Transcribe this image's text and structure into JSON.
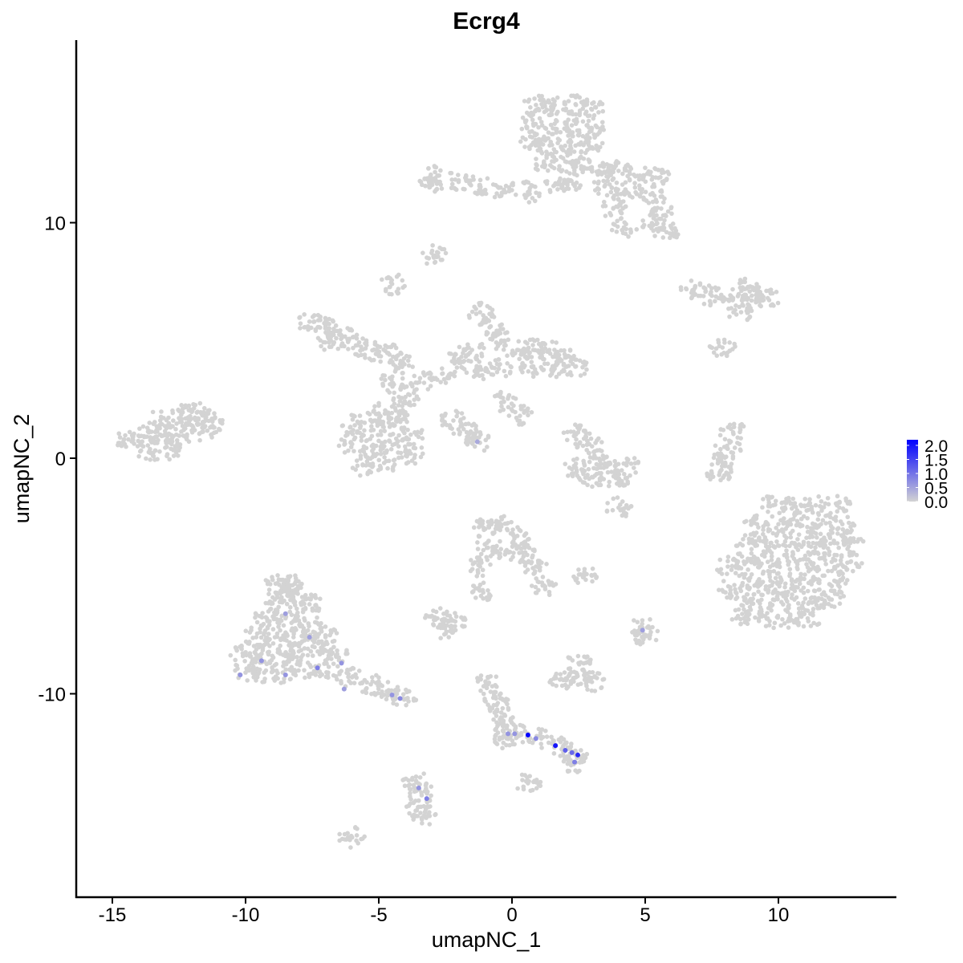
{
  "chart_data": {
    "type": "scatter",
    "title": "Ecrg4",
    "xlabel": "umapNC_1",
    "ylabel": "umapNC_2",
    "xlim": [
      -16.4,
      14.4
    ],
    "ylim": [
      -18.6,
      17.7
    ],
    "x_ticks": [
      "-15",
      "-10",
      "-5",
      "0",
      "5",
      "10"
    ],
    "y_ticks": [
      "-10",
      "0",
      "10"
    ],
    "grid": false,
    "color_scale": {
      "low": "#D3D3D3",
      "high": "#0000FF",
      "min": 0,
      "max": 2.0,
      "labels": [
        "2.0",
        "1.5",
        "1.0",
        "0.5",
        "0.0"
      ],
      "placement": "right"
    },
    "background_cells": [
      [
        0.9,
        15.0
      ],
      [
        1.6,
        15.0
      ],
      [
        2.4,
        15.0
      ],
      [
        3.0,
        14.8
      ],
      [
        0.8,
        14.2
      ],
      [
        1.6,
        14.2
      ],
      [
        2.4,
        14.2
      ],
      [
        3.0,
        14.0
      ],
      [
        0.8,
        13.4
      ],
      [
        1.5,
        13.3
      ],
      [
        2.2,
        13.4
      ],
      [
        3.0,
        13.2
      ],
      [
        1.2,
        12.6
      ],
      [
        2.0,
        12.6
      ],
      [
        2.6,
        12.4
      ],
      [
        3.4,
        12.4
      ],
      [
        4.0,
        12.2
      ],
      [
        4.8,
        12.0
      ],
      [
        5.5,
        11.9
      ],
      [
        3.5,
        11.6
      ],
      [
        4.2,
        11.3
      ],
      [
        5.2,
        11.2
      ],
      [
        5.6,
        10.6
      ],
      [
        3.8,
        10.6
      ],
      [
        4.2,
        9.8
      ],
      [
        5.8,
        9.6
      ],
      [
        5.3,
        9.9
      ],
      [
        2.2,
        11.8
      ],
      [
        1.6,
        11.6
      ],
      [
        0.6,
        11.3
      ],
      [
        -0.3,
        11.4
      ],
      [
        -1.2,
        11.6
      ],
      [
        -2.0,
        11.8
      ],
      [
        -2.8,
        12.0
      ],
      [
        -3.1,
        11.5
      ],
      [
        -2.9,
        8.6
      ],
      [
        -4.5,
        7.4
      ],
      [
        6.8,
        7.1
      ],
      [
        7.5,
        6.9
      ],
      [
        8.3,
        6.8
      ],
      [
        9.0,
        6.9
      ],
      [
        9.6,
        6.8
      ],
      [
        8.8,
        7.2
      ],
      [
        8.6,
        6.2
      ],
      [
        -7.6,
        5.8
      ],
      [
        -7.0,
        5.6
      ],
      [
        -6.4,
        5.2
      ],
      [
        -5.8,
        4.8
      ],
      [
        -5.2,
        4.6
      ],
      [
        -6.8,
        5.0
      ],
      [
        -4.6,
        4.4
      ],
      [
        -4.2,
        4.0
      ],
      [
        -4.5,
        3.2
      ],
      [
        -4.0,
        2.6
      ],
      [
        -3.3,
        3.2
      ],
      [
        -2.6,
        3.6
      ],
      [
        -2.0,
        4.2
      ],
      [
        -1.5,
        4.6
      ],
      [
        -1.2,
        6.2
      ],
      [
        -0.8,
        5.6
      ],
      [
        -0.4,
        5.0
      ],
      [
        0.2,
        4.6
      ],
      [
        0.8,
        4.6
      ],
      [
        1.4,
        4.6
      ],
      [
        2.0,
        4.3
      ],
      [
        2.4,
        3.9
      ],
      [
        1.6,
        3.8
      ],
      [
        0.8,
        3.9
      ],
      [
        -0.5,
        3.8
      ],
      [
        -1.4,
        3.7
      ],
      [
        -5.9,
        1.4
      ],
      [
        -5.2,
        1.2
      ],
      [
        -4.4,
        1.4
      ],
      [
        -3.8,
        1.0
      ],
      [
        -6.0,
        0.6
      ],
      [
        -5.2,
        0.4
      ],
      [
        -4.4,
        0.6
      ],
      [
        -3.8,
        0.2
      ],
      [
        -5.6,
        -0.3
      ],
      [
        -4.8,
        -0.2
      ],
      [
        -4.2,
        2.0
      ],
      [
        -5.0,
        1.9
      ],
      [
        -2.2,
        1.6
      ],
      [
        -1.7,
        1.1
      ],
      [
        -1.3,
        0.7
      ],
      [
        -0.3,
        2.4
      ],
      [
        0.3,
        1.8
      ],
      [
        -14.4,
        0.8
      ],
      [
        -13.8,
        0.9
      ],
      [
        -13.2,
        1.0
      ],
      [
        -12.6,
        1.0
      ],
      [
        -12.0,
        1.1
      ],
      [
        -13.6,
        0.3
      ],
      [
        -12.8,
        0.4
      ],
      [
        -13.2,
        1.6
      ],
      [
        -12.5,
        1.7
      ],
      [
        -12.0,
        2.0
      ],
      [
        -11.5,
        1.7
      ],
      [
        -11.2,
        1.3
      ],
      [
        2.4,
        1.0
      ],
      [
        2.9,
        0.6
      ],
      [
        3.3,
        -0.1
      ],
      [
        3.6,
        -0.6
      ],
      [
        3.0,
        -0.8
      ],
      [
        2.4,
        -0.4
      ],
      [
        4.0,
        -0.9
      ],
      [
        4.3,
        -0.3
      ],
      [
        8.3,
        1.1
      ],
      [
        8.1,
        0.4
      ],
      [
        7.9,
        -0.2
      ],
      [
        7.8,
        -0.6
      ],
      [
        9.8,
        -2.0
      ],
      [
        10.6,
        -2.0
      ],
      [
        11.4,
        -2.0
      ],
      [
        12.2,
        -2.0
      ],
      [
        9.2,
        -2.8
      ],
      [
        10.0,
        -2.8
      ],
      [
        10.8,
        -2.8
      ],
      [
        11.6,
        -2.8
      ],
      [
        12.4,
        -2.8
      ],
      [
        8.9,
        -3.6
      ],
      [
        9.7,
        -3.6
      ],
      [
        10.5,
        -3.6
      ],
      [
        11.3,
        -3.6
      ],
      [
        12.1,
        -3.6
      ],
      [
        12.7,
        -3.6
      ],
      [
        8.8,
        -4.4
      ],
      [
        9.6,
        -4.4
      ],
      [
        10.4,
        -4.4
      ],
      [
        11.2,
        -4.4
      ],
      [
        12.0,
        -4.4
      ],
      [
        12.7,
        -4.4
      ],
      [
        8.9,
        -5.2
      ],
      [
        9.7,
        -5.2
      ],
      [
        10.5,
        -5.2
      ],
      [
        11.3,
        -5.2
      ],
      [
        12.1,
        -5.2
      ],
      [
        9.0,
        -6.0
      ],
      [
        9.8,
        -6.0
      ],
      [
        10.6,
        -6.0
      ],
      [
        11.4,
        -6.0
      ],
      [
        12.0,
        -6.0
      ],
      [
        8.7,
        -6.8
      ],
      [
        9.6,
        -6.8
      ],
      [
        10.4,
        -6.8
      ],
      [
        11.1,
        -6.8
      ],
      [
        8.1,
        -4.6
      ],
      [
        8.2,
        -5.6
      ],
      [
        -1.0,
        -3.0
      ],
      [
        -0.4,
        -2.9
      ],
      [
        0.2,
        -3.3
      ],
      [
        -0.9,
        -3.8
      ],
      [
        -0.2,
        -3.9
      ],
      [
        0.5,
        -4.0
      ],
      [
        0.9,
        -4.6
      ],
      [
        1.2,
        -5.4
      ],
      [
        -1.2,
        -4.6
      ],
      [
        -1.1,
        -5.6
      ],
      [
        -2.8,
        -6.8
      ],
      [
        -2.2,
        -6.9
      ],
      [
        -2.6,
        -7.2
      ],
      [
        -8.8,
        -5.3
      ],
      [
        -8.3,
        -5.4
      ],
      [
        -8.9,
        -6.0
      ],
      [
        -8.2,
        -6.0
      ],
      [
        -7.6,
        -6.2
      ],
      [
        -9.2,
        -6.8
      ],
      [
        -8.5,
        -6.8
      ],
      [
        -7.8,
        -6.8
      ],
      [
        -9.6,
        -7.6
      ],
      [
        -8.9,
        -7.6
      ],
      [
        -8.2,
        -7.6
      ],
      [
        -7.4,
        -7.4
      ],
      [
        -10.1,
        -8.4
      ],
      [
        -9.4,
        -8.3
      ],
      [
        -8.7,
        -8.3
      ],
      [
        -8.0,
        -8.2
      ],
      [
        -7.2,
        -8.2
      ],
      [
        -6.6,
        -8.4
      ],
      [
        -10.0,
        -9.1
      ],
      [
        -9.3,
        -9.1
      ],
      [
        -8.6,
        -9.1
      ],
      [
        -7.8,
        -9.0
      ],
      [
        -6.9,
        -9.1
      ],
      [
        -6.0,
        -9.3
      ],
      [
        -5.3,
        -9.6
      ],
      [
        -4.7,
        -9.9
      ],
      [
        -4.1,
        -10.2
      ],
      [
        -8.4,
        -5.6
      ],
      [
        -7.0,
        -7.6
      ],
      [
        1.8,
        -9.4
      ],
      [
        2.4,
        -9.3
      ],
      [
        3.0,
        -9.5
      ],
      [
        2.5,
        -8.7
      ],
      [
        -0.9,
        -9.6
      ],
      [
        -0.6,
        -10.2
      ],
      [
        -0.4,
        -10.8
      ],
      [
        -0.2,
        -11.4
      ],
      [
        -0.2,
        -11.9
      ],
      [
        0.1,
        -11.7
      ],
      [
        1.1,
        -11.9
      ],
      [
        1.9,
        -12.3
      ],
      [
        2.4,
        -12.6
      ],
      [
        2.3,
        -12.9
      ],
      [
        0.6,
        -13.8
      ],
      [
        -3.6,
        -13.7
      ],
      [
        -3.4,
        -14.2
      ],
      [
        -3.5,
        -14.8
      ],
      [
        -3.3,
        -15.2
      ],
      [
        -6.0,
        -16.1
      ],
      [
        4.9,
        -7.2
      ],
      [
        5.0,
        -7.5
      ],
      [
        7.9,
        4.7
      ],
      [
        4.0,
        -2.1
      ],
      [
        2.7,
        -5.0
      ]
    ],
    "expressing_cells": [
      {
        "x": 0.6,
        "y": -11.75,
        "value": 2.0
      },
      {
        "x": 1.63,
        "y": -12.2,
        "value": 1.8
      },
      {
        "x": 2.47,
        "y": -12.6,
        "value": 1.6
      },
      {
        "x": 2.0,
        "y": -12.4,
        "value": 1.1
      },
      {
        "x": 2.25,
        "y": -12.5,
        "value": 1.0
      },
      {
        "x": -0.15,
        "y": -11.7,
        "value": 0.6
      },
      {
        "x": 0.1,
        "y": -11.7,
        "value": 0.6
      },
      {
        "x": 0.9,
        "y": -11.9,
        "value": 0.7
      },
      {
        "x": 2.35,
        "y": -12.9,
        "value": 0.8
      },
      {
        "x": -8.5,
        "y": -6.6,
        "value": 0.5
      },
      {
        "x": -7.6,
        "y": -7.6,
        "value": 0.5
      },
      {
        "x": -7.3,
        "y": -8.9,
        "value": 0.8
      },
      {
        "x": -6.4,
        "y": -8.7,
        "value": 0.6
      },
      {
        "x": -10.2,
        "y": -9.2,
        "value": 0.6
      },
      {
        "x": -9.4,
        "y": -8.6,
        "value": 0.6
      },
      {
        "x": -8.5,
        "y": -9.2,
        "value": 0.6
      },
      {
        "x": -4.5,
        "y": -10.05,
        "value": 0.6
      },
      {
        "x": -4.2,
        "y": -10.2,
        "value": 0.7
      },
      {
        "x": -6.3,
        "y": -9.8,
        "value": 0.5
      },
      {
        "x": -1.3,
        "y": 0.7,
        "value": 0.4
      },
      {
        "x": 4.9,
        "y": -7.3,
        "value": 0.5
      },
      {
        "x": -3.5,
        "y": -14.0,
        "value": 0.6
      },
      {
        "x": -3.2,
        "y": -14.45,
        "value": 0.8
      }
    ]
  }
}
